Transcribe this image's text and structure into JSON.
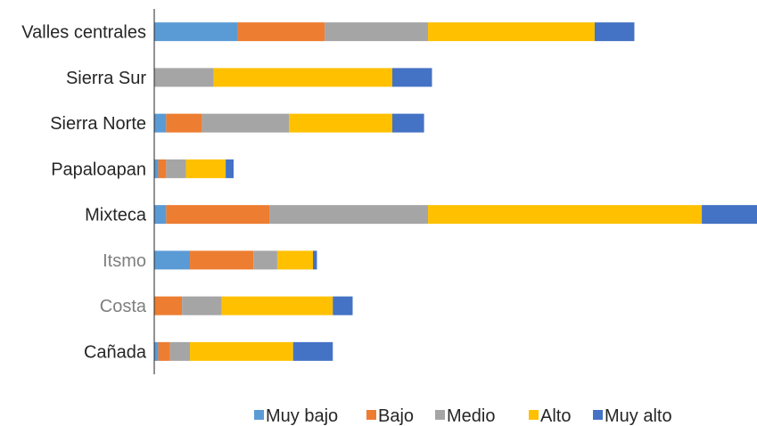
{
  "chart_data": {
    "type": "bar",
    "orientation": "horizontal",
    "stacked": true,
    "categories": [
      "Valles centrales",
      "Sierra Sur",
      "Sierra Norte",
      "Papaloapan",
      "Mixteca",
      "Itsmo",
      "Costa",
      "Cañada"
    ],
    "category_label_colors": [
      "#262626",
      "#262626",
      "#262626",
      "#262626",
      "#262626",
      "#7f7f7f",
      "#7f7f7f",
      "#262626"
    ],
    "series": [
      {
        "name": "Muy bajo",
        "color": "#5b9bd5",
        "values": [
          21,
          0,
          3,
          1,
          3,
          9,
          0,
          1
        ]
      },
      {
        "name": "Bajo",
        "color": "#ed7d31",
        "values": [
          22,
          0,
          9,
          2,
          26,
          16,
          7,
          3
        ]
      },
      {
        "name": "Medio",
        "color": "#a5a5a5",
        "values": [
          26,
          15,
          22,
          5,
          40,
          6,
          10,
          5
        ]
      },
      {
        "name": "Alto",
        "color": "#ffc000",
        "values": [
          42,
          45,
          26,
          10,
          69,
          9,
          28,
          26
        ]
      },
      {
        "name": "Muy alto",
        "color": "#4472c4",
        "values": [
          10,
          10,
          8,
          2,
          14,
          1,
          5,
          10
        ]
      }
    ],
    "xlim": [
      0,
      152
    ],
    "grid": false,
    "legend_position": "bottom"
  }
}
